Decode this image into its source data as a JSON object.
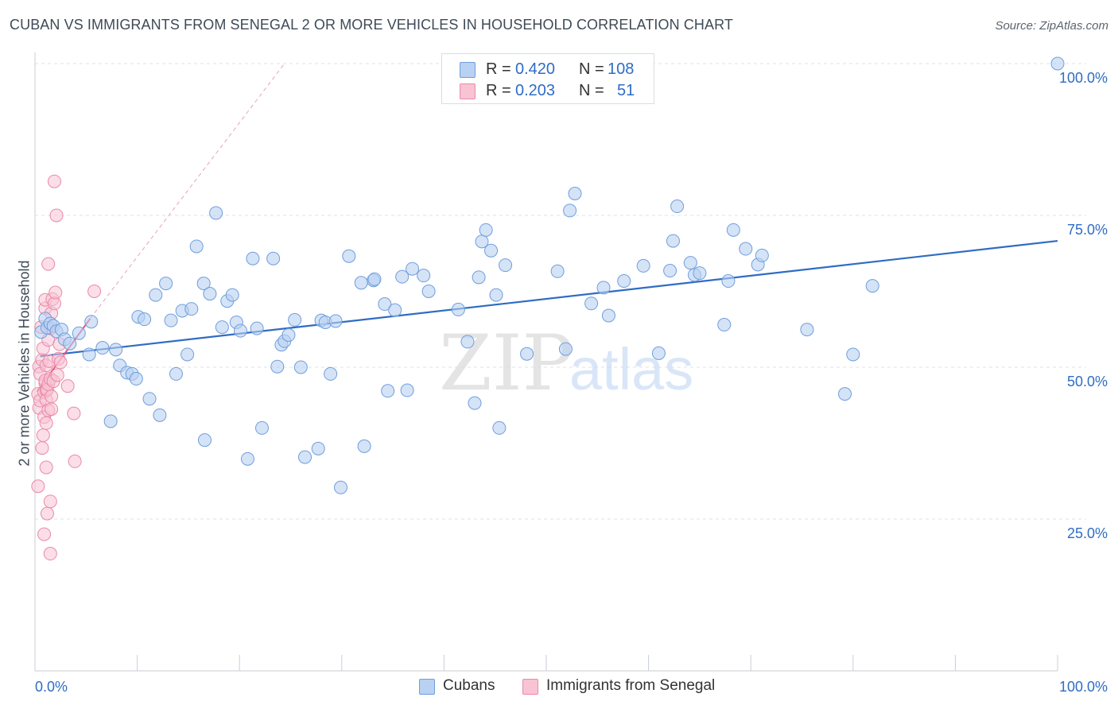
{
  "title": "CUBAN VS IMMIGRANTS FROM SENEGAL 2 OR MORE VEHICLES IN HOUSEHOLD CORRELATION CHART",
  "source": "Source: ZipAtlas.com",
  "watermark": {
    "zip": "ZIP",
    "atlas": "atlas"
  },
  "legend": {
    "rows": [
      {
        "r_label": "R =",
        "r_value": "0.420",
        "n_label": "N =",
        "n_value": "108"
      },
      {
        "r_label": "R =",
        "r_value": "0.203",
        "n_label": "N =",
        "n_value": "51"
      }
    ]
  },
  "bottom_legend": [
    "Cubans",
    "Immigrants from Senegal"
  ],
  "chart_data": {
    "type": "scatter",
    "title": "CUBAN VS IMMIGRANTS FROM SENEGAL 2 OR MORE VEHICLES IN HOUSEHOLD CORRELATION CHART",
    "xlabel": "",
    "ylabel": "2 or more Vehicles in Household",
    "xlim": [
      0,
      100
    ],
    "ylim": [
      0,
      100
    ],
    "x_tick_labels": [
      "0.0%",
      "100.0%"
    ],
    "y_tick_values": [
      25,
      50,
      75,
      100
    ],
    "y_tick_labels": [
      "25.0%",
      "50.0%",
      "75.0%",
      "100.0%"
    ],
    "grid": true,
    "legend_position": "top-center",
    "colors": {
      "cubans_fill": "#b9d1f2",
      "cubans_stroke": "#6f9edc",
      "cubans_line": "#2f6cc4",
      "senegal_fill": "#f8c3d3",
      "senegal_stroke": "#e98aa9",
      "senegal_line": "#e8517f",
      "tick_label": "#2f6cc4",
      "grid": "#dde2e8"
    },
    "series": [
      {
        "name": "Cubans",
        "r": 0.42,
        "n": 108,
        "trend": {
          "x0": 0.5,
          "y0": 51.8,
          "x1": 100,
          "y1": 70.8
        },
        "points": [
          [
            0.6,
            55.8
          ],
          [
            1.0,
            58.0
          ],
          [
            1.2,
            56.5
          ],
          [
            1.5,
            57.2
          ],
          [
            1.8,
            56.8
          ],
          [
            2.1,
            55.9
          ],
          [
            2.6,
            56.2
          ],
          [
            2.9,
            54.6
          ],
          [
            3.4,
            53.9
          ],
          [
            4.3,
            55.6
          ],
          [
            5.3,
            52.1
          ],
          [
            5.5,
            57.5
          ],
          [
            6.6,
            53.2
          ],
          [
            7.9,
            52.9
          ],
          [
            7.4,
            41.1
          ],
          [
            8.3,
            50.3
          ],
          [
            9.0,
            49.1
          ],
          [
            9.5,
            48.9
          ],
          [
            9.9,
            48.1
          ],
          [
            10.1,
            58.3
          ],
          [
            10.7,
            57.9
          ],
          [
            11.2,
            44.8
          ],
          [
            11.8,
            61.9
          ],
          [
            12.2,
            42.1
          ],
          [
            12.8,
            63.8
          ],
          [
            13.3,
            57.7
          ],
          [
            13.8,
            48.9
          ],
          [
            14.4,
            59.3
          ],
          [
            14.9,
            52.1
          ],
          [
            15.3,
            59.6
          ],
          [
            15.8,
            69.9
          ],
          [
            16.5,
            63.8
          ],
          [
            16.6,
            38.0
          ],
          [
            17.1,
            62.1
          ],
          [
            17.7,
            75.4
          ],
          [
            18.3,
            56.6
          ],
          [
            18.8,
            60.9
          ],
          [
            19.3,
            61.9
          ],
          [
            19.7,
            57.4
          ],
          [
            20.1,
            56.0
          ],
          [
            20.8,
            34.9
          ],
          [
            21.3,
            67.9
          ],
          [
            21.7,
            56.4
          ],
          [
            22.2,
            40.0
          ],
          [
            23.3,
            67.9
          ],
          [
            23.7,
            50.1
          ],
          [
            24.1,
            53.7
          ],
          [
            24.4,
            54.3
          ],
          [
            24.8,
            55.3
          ],
          [
            25.4,
            57.8
          ],
          [
            26.0,
            50.0
          ],
          [
            26.4,
            35.2
          ],
          [
            27.7,
            36.6
          ],
          [
            28.0,
            57.7
          ],
          [
            28.4,
            57.4
          ],
          [
            28.9,
            48.9
          ],
          [
            29.4,
            57.6
          ],
          [
            29.9,
            30.2
          ],
          [
            30.7,
            68.3
          ],
          [
            31.9,
            63.9
          ],
          [
            32.2,
            37.0
          ],
          [
            33.1,
            64.3
          ],
          [
            33.2,
            64.5
          ],
          [
            34.2,
            60.4
          ],
          [
            34.5,
            46.1
          ],
          [
            35.2,
            59.4
          ],
          [
            35.9,
            64.9
          ],
          [
            36.4,
            46.2
          ],
          [
            36.9,
            66.2
          ],
          [
            38.0,
            65.1
          ],
          [
            38.5,
            62.5
          ],
          [
            41.4,
            59.5
          ],
          [
            42.3,
            54.2
          ],
          [
            43.0,
            44.1
          ],
          [
            43.4,
            64.8
          ],
          [
            43.7,
            70.7
          ],
          [
            44.1,
            72.6
          ],
          [
            44.6,
            69.2
          ],
          [
            45.1,
            61.9
          ],
          [
            45.4,
            40.0
          ],
          [
            46.0,
            66.8
          ],
          [
            48.1,
            52.2
          ],
          [
            51.1,
            65.8
          ],
          [
            51.9,
            53.0
          ],
          [
            52.3,
            75.8
          ],
          [
            52.8,
            78.6
          ],
          [
            54.4,
            60.5
          ],
          [
            55.6,
            63.1
          ],
          [
            56.1,
            58.5
          ],
          [
            57.6,
            64.2
          ],
          [
            59.5,
            66.7
          ],
          [
            61.0,
            52.3
          ],
          [
            62.1,
            65.9
          ],
          [
            62.4,
            70.8
          ],
          [
            62.8,
            76.5
          ],
          [
            64.1,
            67.2
          ],
          [
            64.5,
            65.2
          ],
          [
            65.0,
            65.5
          ],
          [
            67.4,
            57.0
          ],
          [
            67.8,
            64.2
          ],
          [
            68.3,
            72.6
          ],
          [
            69.5,
            69.5
          ],
          [
            70.7,
            66.9
          ],
          [
            71.1,
            68.4
          ],
          [
            75.5,
            56.2
          ],
          [
            79.2,
            45.6
          ],
          [
            80.0,
            52.1
          ],
          [
            81.9,
            63.4
          ],
          [
            100.0,
            100.0
          ]
        ]
      },
      {
        "name": "Immigrants from Senegal",
        "r": 0.203,
        "n": 51,
        "trend": {
          "x0": 0.2,
          "y0": 46.0,
          "x1": 5.4,
          "y1": 58.0
        },
        "trend_extension": {
          "x0": 5.4,
          "y0": 58.0,
          "x1": 24.4,
          "y1": 100.0
        },
        "points": [
          [
            0.3,
            30.4
          ],
          [
            0.3,
            45.6
          ],
          [
            0.4,
            43.3
          ],
          [
            0.4,
            50.1
          ],
          [
            0.5,
            44.5
          ],
          [
            0.5,
            48.9
          ],
          [
            0.6,
            56.6
          ],
          [
            0.7,
            36.7
          ],
          [
            0.7,
            51.2
          ],
          [
            0.8,
            38.8
          ],
          [
            0.8,
            53.1
          ],
          [
            0.9,
            22.5
          ],
          [
            0.9,
            41.8
          ],
          [
            0.9,
            45.9
          ],
          [
            1.0,
            47.4
          ],
          [
            1.0,
            47.8
          ],
          [
            1.0,
            59.7
          ],
          [
            1.0,
            61.1
          ],
          [
            1.1,
            46.2
          ],
          [
            1.1,
            44.6
          ],
          [
            1.1,
            50.3
          ],
          [
            1.1,
            33.5
          ],
          [
            1.1,
            40.8
          ],
          [
            1.2,
            25.9
          ],
          [
            1.2,
            46.3
          ],
          [
            1.3,
            67.0
          ],
          [
            1.3,
            42.9
          ],
          [
            1.3,
            54.5
          ],
          [
            1.3,
            47.2
          ],
          [
            1.4,
            51.0
          ],
          [
            1.5,
            48.1
          ],
          [
            1.5,
            27.9
          ],
          [
            1.5,
            56.4
          ],
          [
            1.5,
            19.3
          ],
          [
            1.6,
            43.1
          ],
          [
            1.6,
            45.2
          ],
          [
            1.6,
            58.9
          ],
          [
            1.7,
            61.2
          ],
          [
            1.8,
            47.7
          ],
          [
            1.9,
            60.5
          ],
          [
            1.9,
            80.6
          ],
          [
            2.0,
            62.3
          ],
          [
            2.1,
            75.0
          ],
          [
            2.2,
            48.7
          ],
          [
            2.3,
            51.4
          ],
          [
            2.4,
            53.8
          ],
          [
            2.5,
            50.8
          ],
          [
            3.2,
            46.9
          ],
          [
            3.8,
            42.4
          ],
          [
            3.9,
            34.5
          ],
          [
            5.8,
            62.5
          ]
        ]
      }
    ]
  }
}
